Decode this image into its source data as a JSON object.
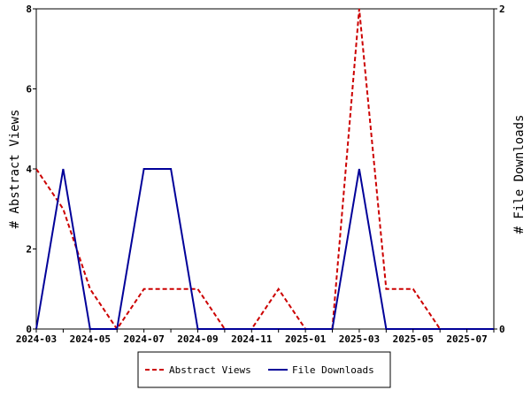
{
  "chart_data": {
    "type": "line",
    "xlabel": "",
    "y_left_label": "# Abstract Views",
    "y_right_label": "# File Downloads",
    "x_tick_labels": [
      "2024-03",
      "2024-05",
      "2024-07",
      "2024-09",
      "2024-11",
      "2025-01",
      "2025-03",
      "2025-05",
      "2025-07"
    ],
    "x": [
      "2024-03",
      "2024-04",
      "2024-05",
      "2024-06",
      "2024-07",
      "2024-08",
      "2024-09",
      "2024-10",
      "2024-11",
      "2024-12",
      "2025-01",
      "2025-02",
      "2025-03",
      "2025-04",
      "2025-05",
      "2025-06",
      "2025-07",
      "2025-08"
    ],
    "y_left_ticks": [
      "0",
      "2",
      "4",
      "6",
      "8"
    ],
    "y_left_range": [
      0,
      8
    ],
    "y_right_ticks": [
      "0",
      "2"
    ],
    "y_right_range": [
      0,
      2
    ],
    "grid": false,
    "legend_position": "bottom-center",
    "series": [
      {
        "name": "Abstract Views",
        "axis": "left",
        "color": "#cc0000",
        "style": "dashed",
        "values": [
          4,
          3,
          1,
          0,
          1,
          1,
          1,
          0,
          0,
          1,
          0,
          0,
          8,
          1,
          1,
          0,
          0,
          0
        ]
      },
      {
        "name": "File Downloads",
        "axis": "right",
        "color": "#000099",
        "style": "solid",
        "values": [
          0,
          1,
          0,
          0,
          1,
          1,
          0,
          0,
          0,
          0,
          0,
          0,
          1,
          0,
          0,
          0,
          0,
          0
        ]
      }
    ]
  }
}
